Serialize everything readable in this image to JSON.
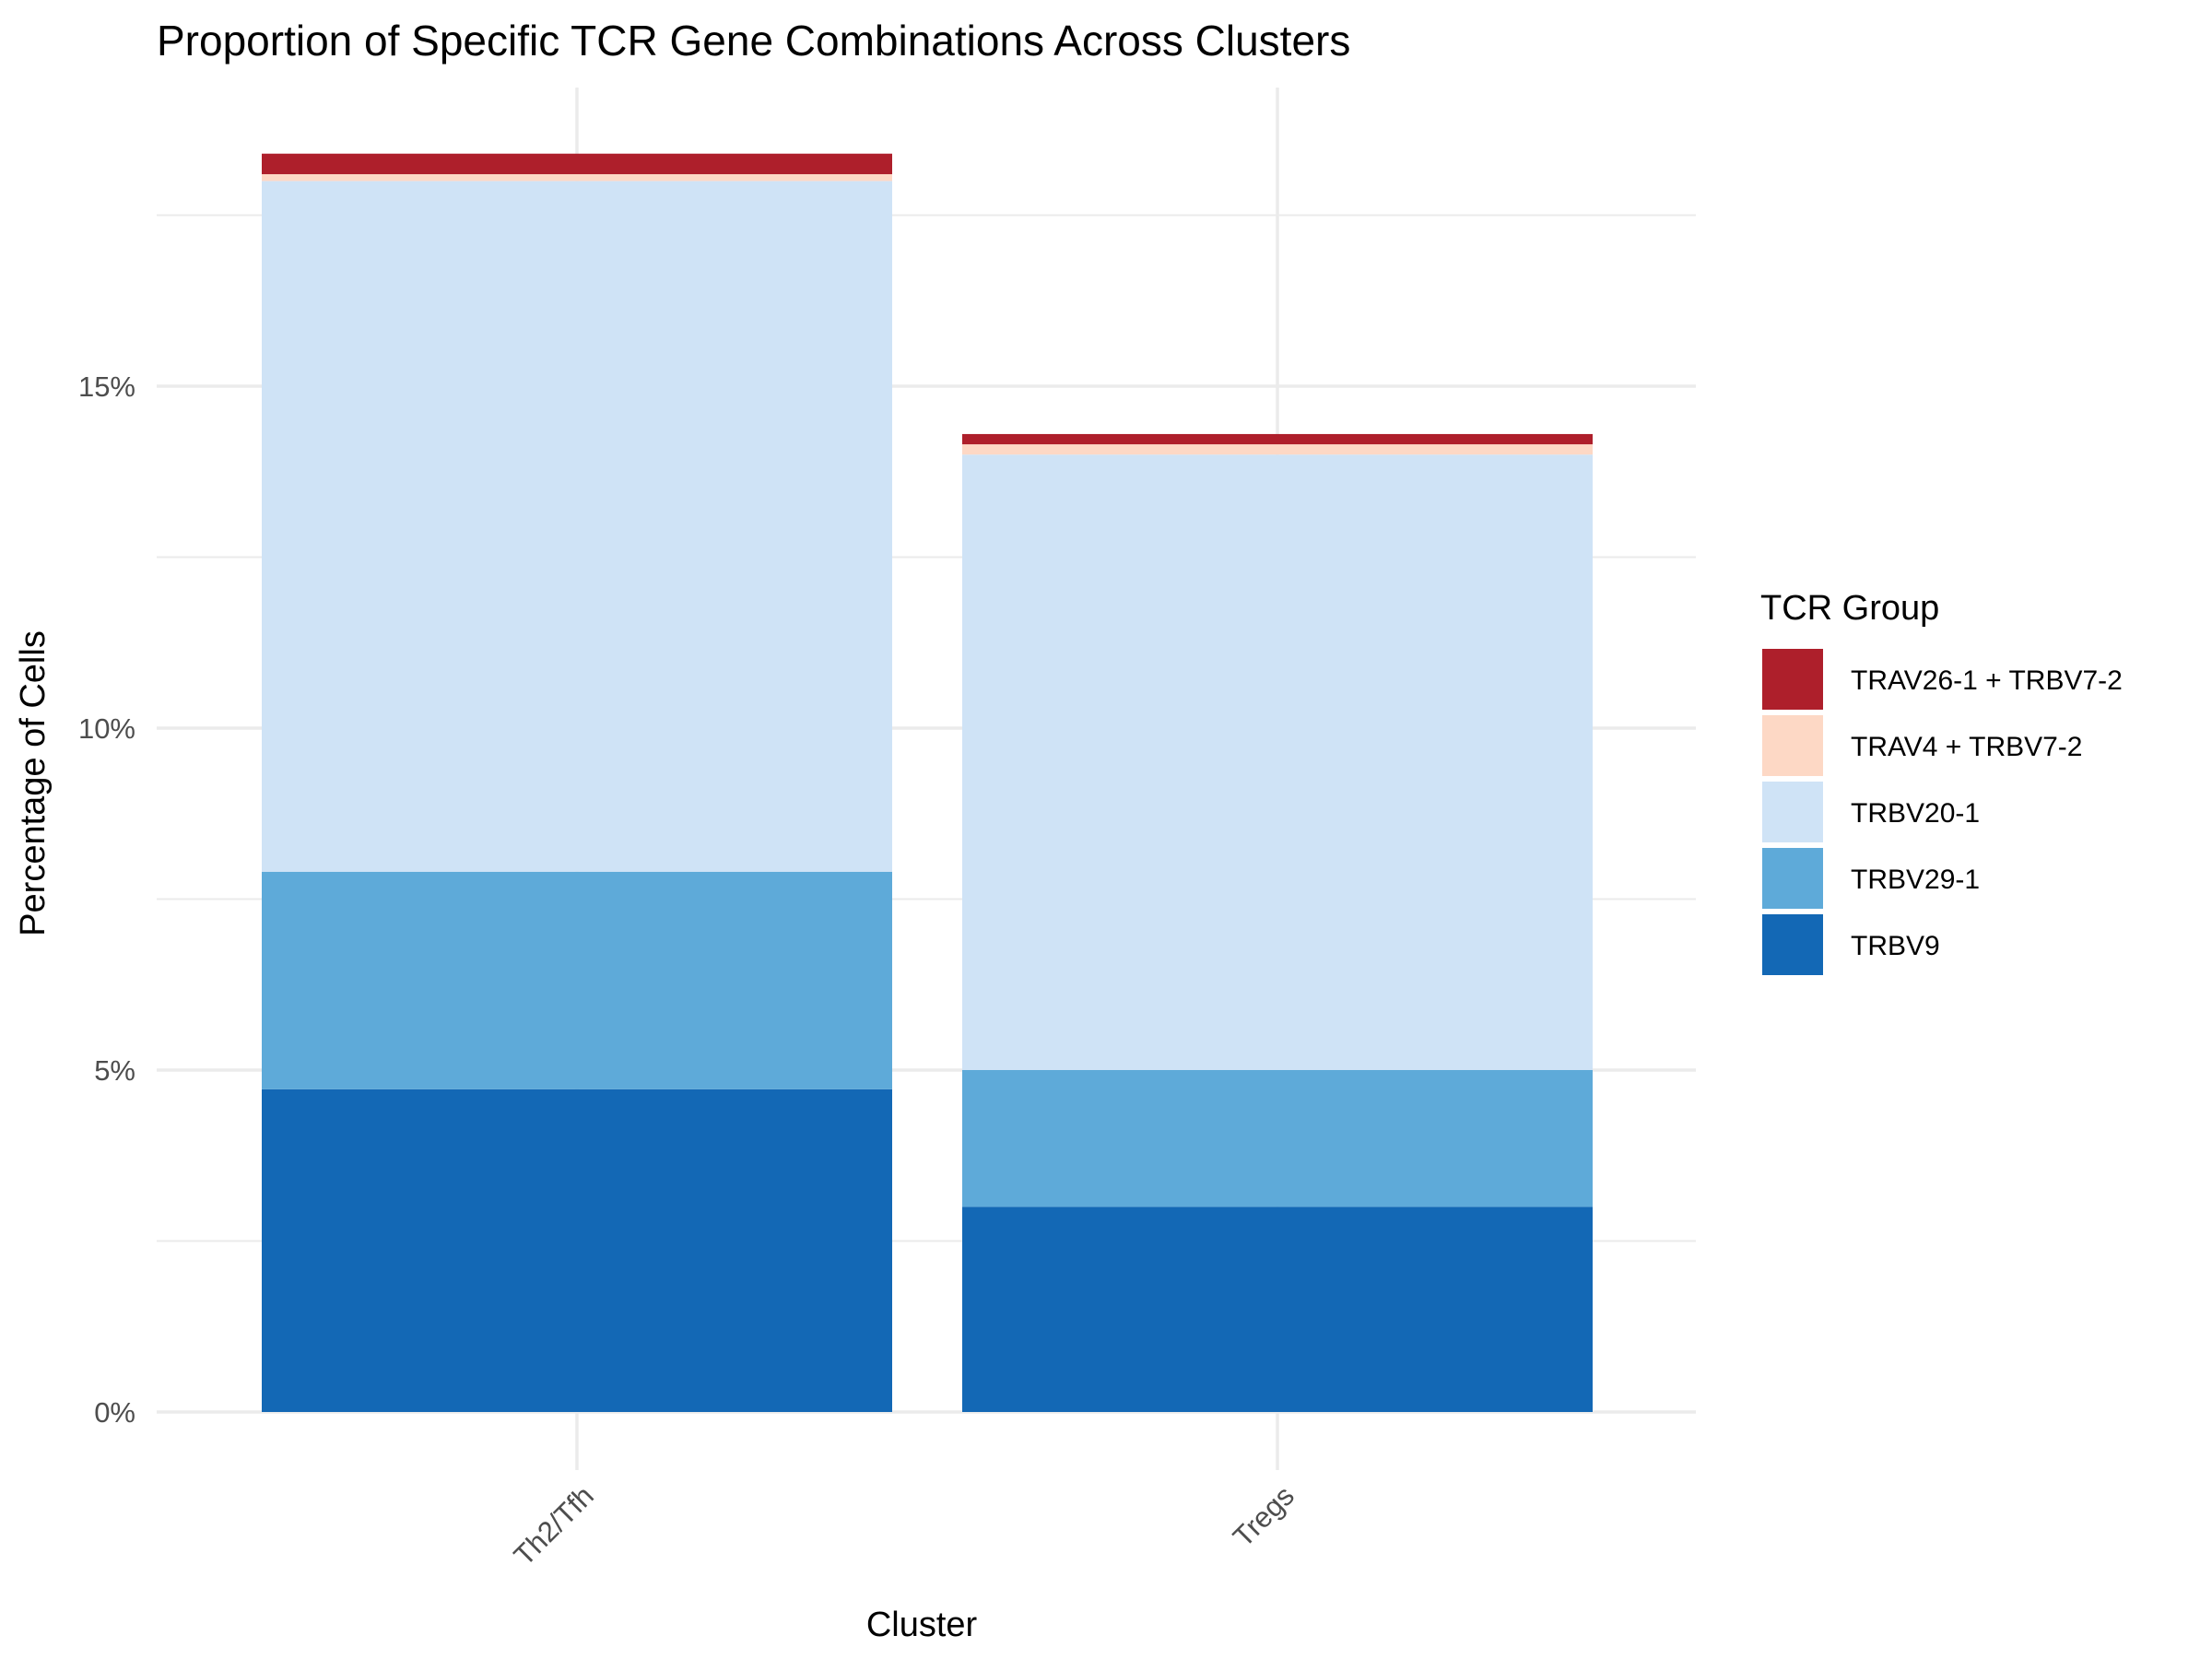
{
  "chart_data": {
    "type": "bar",
    "stacked": true,
    "title": "Proportion of Specific TCR Gene Combinations Across Clusters",
    "xlabel": "Cluster",
    "ylabel": "Percentage of Cells",
    "categories": [
      "Th2/Tfh",
      "Tregs"
    ],
    "ylim": [
      0,
      19.4
    ],
    "yticks": [
      0,
      5,
      10,
      15
    ],
    "ytick_labels": [
      "0%",
      "5%",
      "10%",
      "15%"
    ],
    "grid": true,
    "legend": {
      "title": "TCR Group",
      "position": "right",
      "order": [
        "TRAV26-1 + TRBV7-2",
        "TRAV4 + TRBV7-2",
        "TRBV20-1",
        "TRBV29-1",
        "TRBV9"
      ]
    },
    "series": [
      {
        "name": "TRBV9",
        "color": "#1368b5",
        "values": [
          4.72,
          3.0
        ]
      },
      {
        "name": "TRBV29-1",
        "color": "#5eaad9",
        "values": [
          3.18,
          2.0
        ]
      },
      {
        "name": "TRBV20-1",
        "color": "#cfe3f6",
        "values": [
          10.1,
          9.0
        ]
      },
      {
        "name": "TRAV4 + TRBV7-2",
        "color": "#fdd8c5",
        "values": [
          0.1,
          0.15
        ]
      },
      {
        "name": "TRAV26-1 + TRBV7-2",
        "color": "#ae1f2b",
        "values": [
          0.3,
          0.15
        ]
      }
    ]
  }
}
